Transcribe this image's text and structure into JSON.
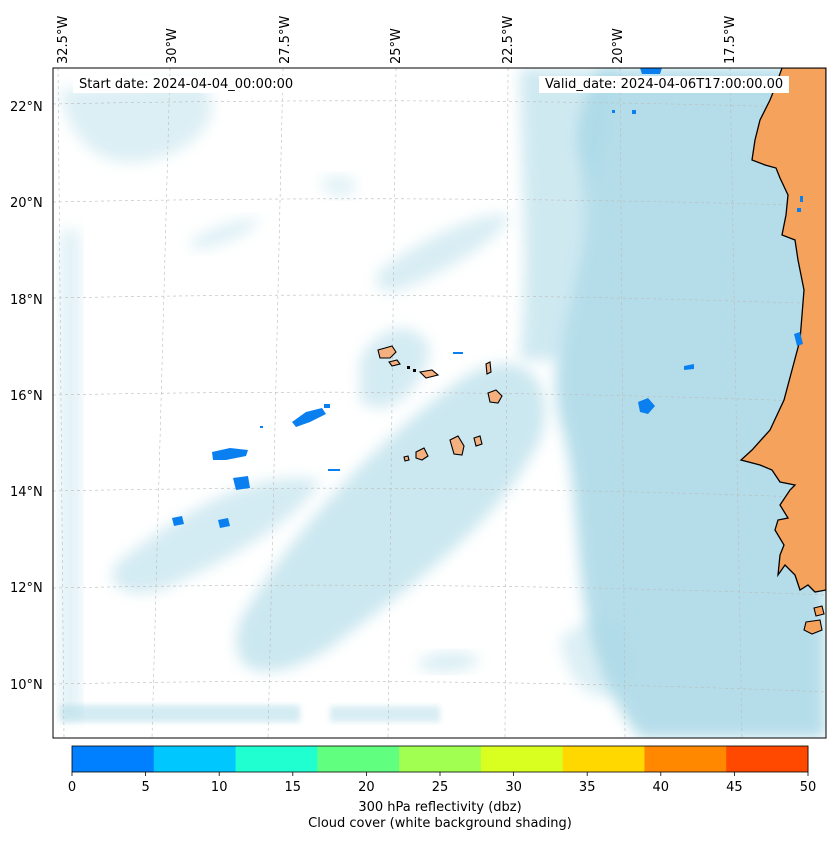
{
  "header": {
    "start_date": "Start date: 2024-04-04_00:00:00",
    "valid_date": "Valid_date: 2024-04-06T17:00:00.00"
  },
  "axes": {
    "lon_labels": [
      "32.5°W",
      "30°W",
      "27.5°W",
      "25°W",
      "22.5°W",
      "20°W",
      "17.5°W"
    ],
    "lat_labels": [
      "22°N",
      "20°N",
      "18°N",
      "16°N",
      "14°N",
      "12°N",
      "10°N"
    ]
  },
  "colorbar": {
    "ticks": [
      "0",
      "5",
      "10",
      "15",
      "20",
      "25",
      "30",
      "35",
      "40",
      "45",
      "50"
    ],
    "colors": [
      "#0080ff",
      "#00c8ff",
      "#20ffd0",
      "#60ff80",
      "#a0ff50",
      "#d8ff20",
      "#ffd800",
      "#ff8800",
      "#ff4800"
    ],
    "label_line1": "300 hPa reflectivity (dbz)",
    "label_line2": "Cloud cover (white background shading)"
  },
  "colors": {
    "land": "#f5a25d",
    "cloud": "#a9d8e6",
    "echo": "#0a7ff0"
  }
}
